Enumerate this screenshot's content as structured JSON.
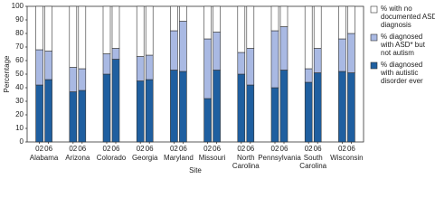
{
  "chart_data": {
    "type": "stacked-bar",
    "ylabel": "Percentage",
    "xlabel": "Site",
    "groups": [
      "Alabama",
      "Arizona",
      "Colorado",
      "Georgia",
      "Maryland",
      "Missouri",
      "North Carolina",
      "Pennsylvania",
      "South Carolina",
      "Wisconsin"
    ],
    "categories": [
      "02",
      "06",
      "02",
      "06",
      "02",
      "06",
      "02",
      "06",
      "02",
      "06",
      "02",
      "06",
      "02",
      "06",
      "02",
      "06",
      "02",
      "06",
      "02",
      "06"
    ],
    "series": [
      {
        "name": "% diagnosed with autistic disorder ever",
        "color": "#1f5fa0",
        "values": [
          42,
          46,
          37,
          38,
          50,
          61,
          45,
          46,
          53,
          52,
          32,
          53,
          50,
          42,
          40,
          53,
          44,
          51,
          52,
          51
        ]
      },
      {
        "name": "% diagnosed with ASD* but not autism",
        "color": "#a9b9e3",
        "values": [
          26,
          21,
          18,
          16,
          15,
          8,
          18,
          18,
          29,
          37,
          44,
          28,
          16,
          27,
          42,
          32,
          10,
          18,
          24,
          29
        ]
      },
      {
        "name": "% with no documented ASD diagnosis",
        "color": "#ffffff",
        "values": [
          32,
          33,
          45,
          46,
          35,
          31,
          37,
          36,
          18,
          11,
          24,
          19,
          34,
          31,
          18,
          15,
          46,
          31,
          24,
          20
        ]
      }
    ],
    "ylim": [
      0,
      100
    ],
    "yticks": [
      0,
      10,
      20,
      30,
      40,
      50,
      60,
      70,
      80,
      90,
      100
    ]
  }
}
